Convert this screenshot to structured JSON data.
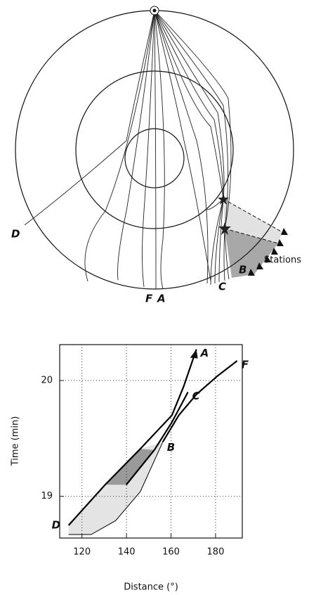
{
  "diagram": {
    "labels": [
      "D",
      "F",
      "A",
      "C",
      "B",
      "Stations"
    ]
  },
  "chart_data": {
    "type": "line",
    "xlabel": "Distance (°)",
    "ylabel": "Time (min)",
    "xlim": [
      110,
      192
    ],
    "ylim": [
      18.64,
      20.31
    ],
    "xticks": [
      120,
      140,
      160,
      180
    ],
    "yticks": [
      19,
      20
    ],
    "grid": true,
    "series": [
      {
        "name": "A",
        "color": "#000000",
        "x": [
          114.0,
          130.4,
          146.2,
          160.4,
          165.7,
          171.4
        ],
        "values": [
          18.75,
          19.1,
          19.41,
          19.7,
          19.95,
          20.27
        ]
      },
      {
        "name": "C",
        "color": "#000000",
        "x": [
          139.9,
          152.5,
          160.4,
          167.6
        ],
        "values": [
          19.1,
          19.4,
          19.64,
          19.9
        ]
      },
      {
        "name": "F",
        "color": "#000000",
        "x": [
          156.3,
          163.5,
          171.4,
          180.9,
          189.7
        ],
        "values": [
          19.47,
          19.7,
          19.88,
          20.04,
          20.17
        ]
      },
      {
        "color": "#000000",
        "x": [
          114.0,
          124.1,
          135.1,
          146.2,
          156.3
        ],
        "values": [
          18.67,
          18.67,
          18.79,
          19.04,
          19.47
        ]
      }
    ],
    "annotations": [
      "D",
      "B"
    ]
  }
}
